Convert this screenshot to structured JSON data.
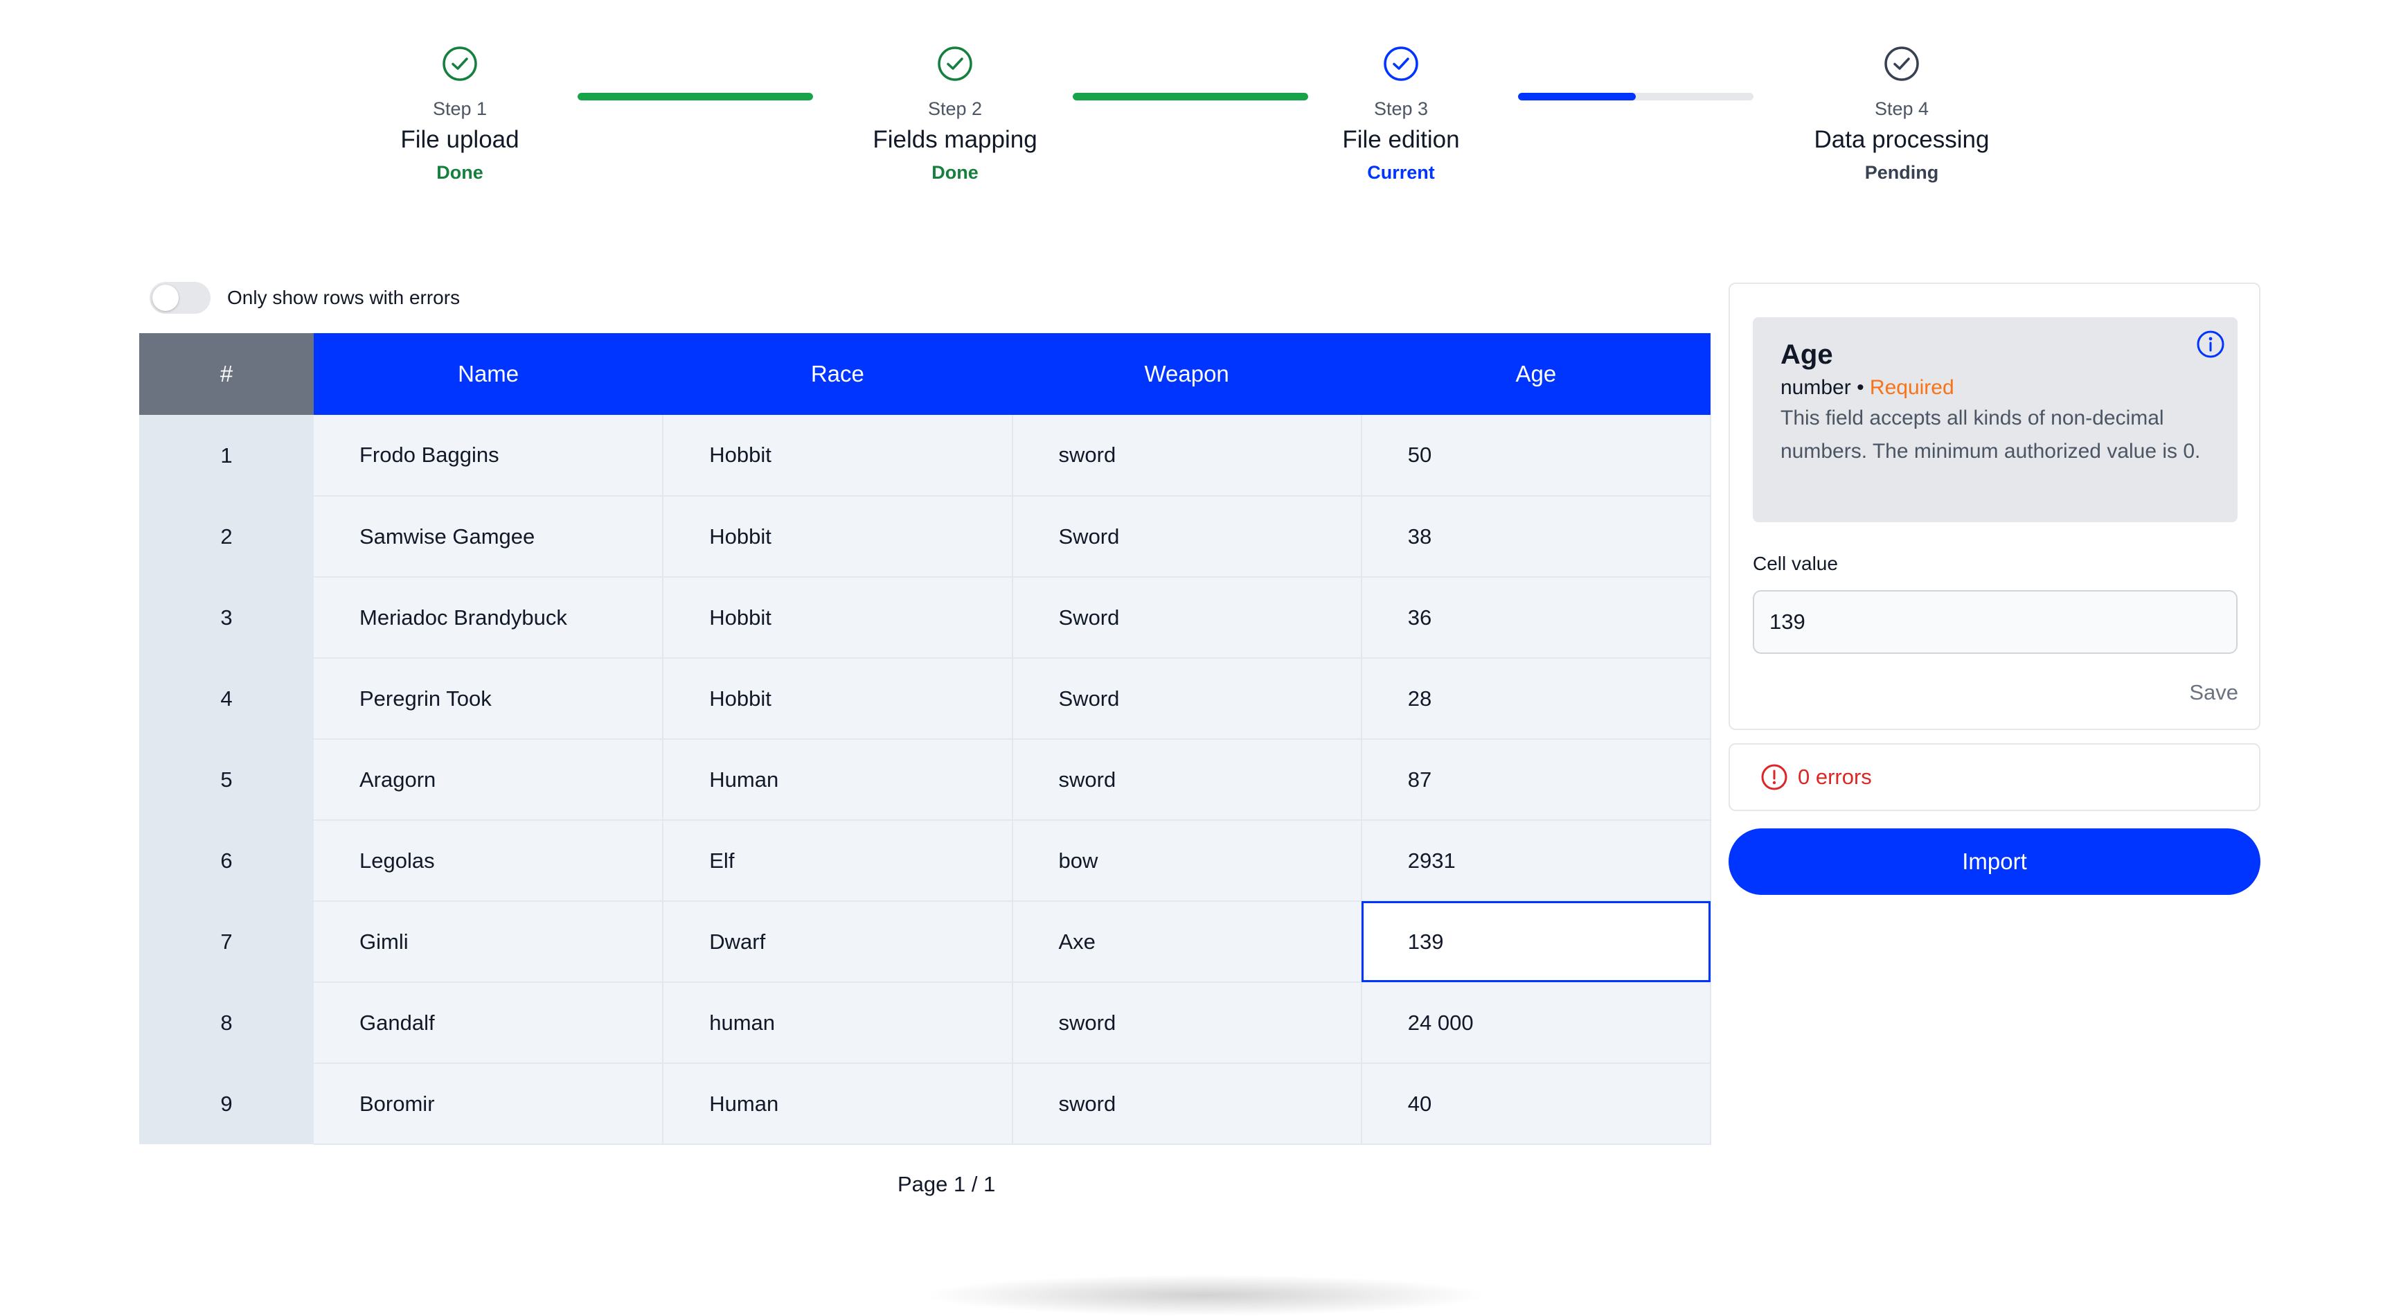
{
  "stepper": {
    "steps": [
      {
        "number": "Step 1",
        "title": "File upload",
        "status": "Done",
        "state": "done"
      },
      {
        "number": "Step 2",
        "title": "Fields mapping",
        "status": "Done",
        "state": "done"
      },
      {
        "number": "Step 3",
        "title": "File edition",
        "status": "Current",
        "state": "current"
      },
      {
        "number": "Step 4",
        "title": "Data processing",
        "status": "Pending",
        "state": "pending"
      }
    ],
    "connectors": [
      {
        "progress": 1.0,
        "color": "#16a34a"
      },
      {
        "progress": 1.0,
        "color": "#16a34a"
      },
      {
        "progress": 0.5,
        "color": "#0034ff"
      }
    ],
    "icon": "check-circle-icon"
  },
  "filter": {
    "label": "Only show rows with errors",
    "enabled": false
  },
  "table": {
    "columns": [
      "#",
      "Name",
      "Race",
      "Weapon",
      "Age"
    ],
    "rows": [
      [
        "1",
        "Frodo Baggins",
        "Hobbit",
        "sword",
        "50"
      ],
      [
        "2",
        "Samwise Gamgee",
        "Hobbit",
        "Sword",
        "38"
      ],
      [
        "3",
        "Meriadoc Brandybuck",
        "Hobbit",
        "Sword",
        "36"
      ],
      [
        "4",
        "Peregrin Took",
        "Hobbit",
        "Sword",
        "28"
      ],
      [
        "5",
        "Aragorn",
        "Human",
        "sword",
        "87"
      ],
      [
        "6",
        "Legolas",
        "Elf",
        "bow",
        "2931"
      ],
      [
        "7",
        "Gimli",
        "Dwarf",
        "Axe",
        "139"
      ],
      [
        "8",
        "Gandalf",
        "human",
        "sword",
        "24 000"
      ],
      [
        "9",
        "Boromir",
        "Human",
        "sword",
        "40"
      ]
    ],
    "selected_cell": {
      "row": 6,
      "col": 4
    }
  },
  "pagination": {
    "label": "Page 1 / 1"
  },
  "panel": {
    "field_name": "Age",
    "field_type": "number",
    "separator": "•",
    "required_label": "Required",
    "description": "This field accepts all kinds of non-decimal numbers. The minimum authorized value is 0.",
    "info_icon": "info-icon",
    "cell_value_label": "Cell value",
    "cell_value": "139",
    "save_label": "Save"
  },
  "errors": {
    "label": "0 errors",
    "icon": "alert-circle-icon"
  },
  "import_button": {
    "label": "Import"
  },
  "colors": {
    "accent": "#0034ff",
    "done": "#15803d",
    "required": "#f97316",
    "error": "#dc2626"
  }
}
